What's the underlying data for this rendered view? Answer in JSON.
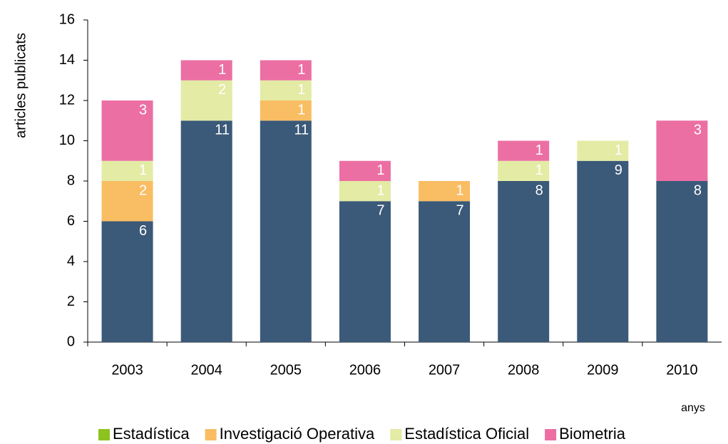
{
  "chart_data": {
    "type": "stacked_bar",
    "y_label": "articles publicats",
    "x_label": "anys",
    "categories": [
      "2003",
      "2004",
      "2005",
      "2006",
      "2007",
      "2008",
      "2009",
      "2010"
    ],
    "series": [
      {
        "name": "Estadística",
        "color": "#3b5978",
        "legend_color": "#8dc21f",
        "values": [
          6,
          11,
          11,
          7,
          7,
          8,
          9,
          8
        ]
      },
      {
        "name": "Investigació Operativa",
        "color": "#f9bd63",
        "values": [
          2,
          null,
          1,
          null,
          1,
          null,
          null,
          null
        ]
      },
      {
        "name": "Estadística Oficial",
        "color": "#e3eba5",
        "values": [
          1,
          2,
          1,
          1,
          null,
          1,
          1,
          null
        ]
      },
      {
        "name": "Biometria",
        "color": "#ec6fa4",
        "values": [
          3,
          1,
          1,
          1,
          null,
          1,
          null,
          3
        ]
      }
    ],
    "ylim": [
      0,
      16
    ],
    "yticks": [
      0,
      2,
      4,
      6,
      8,
      10,
      12,
      14,
      16
    ],
    "grid": false,
    "legend": "bottom"
  }
}
